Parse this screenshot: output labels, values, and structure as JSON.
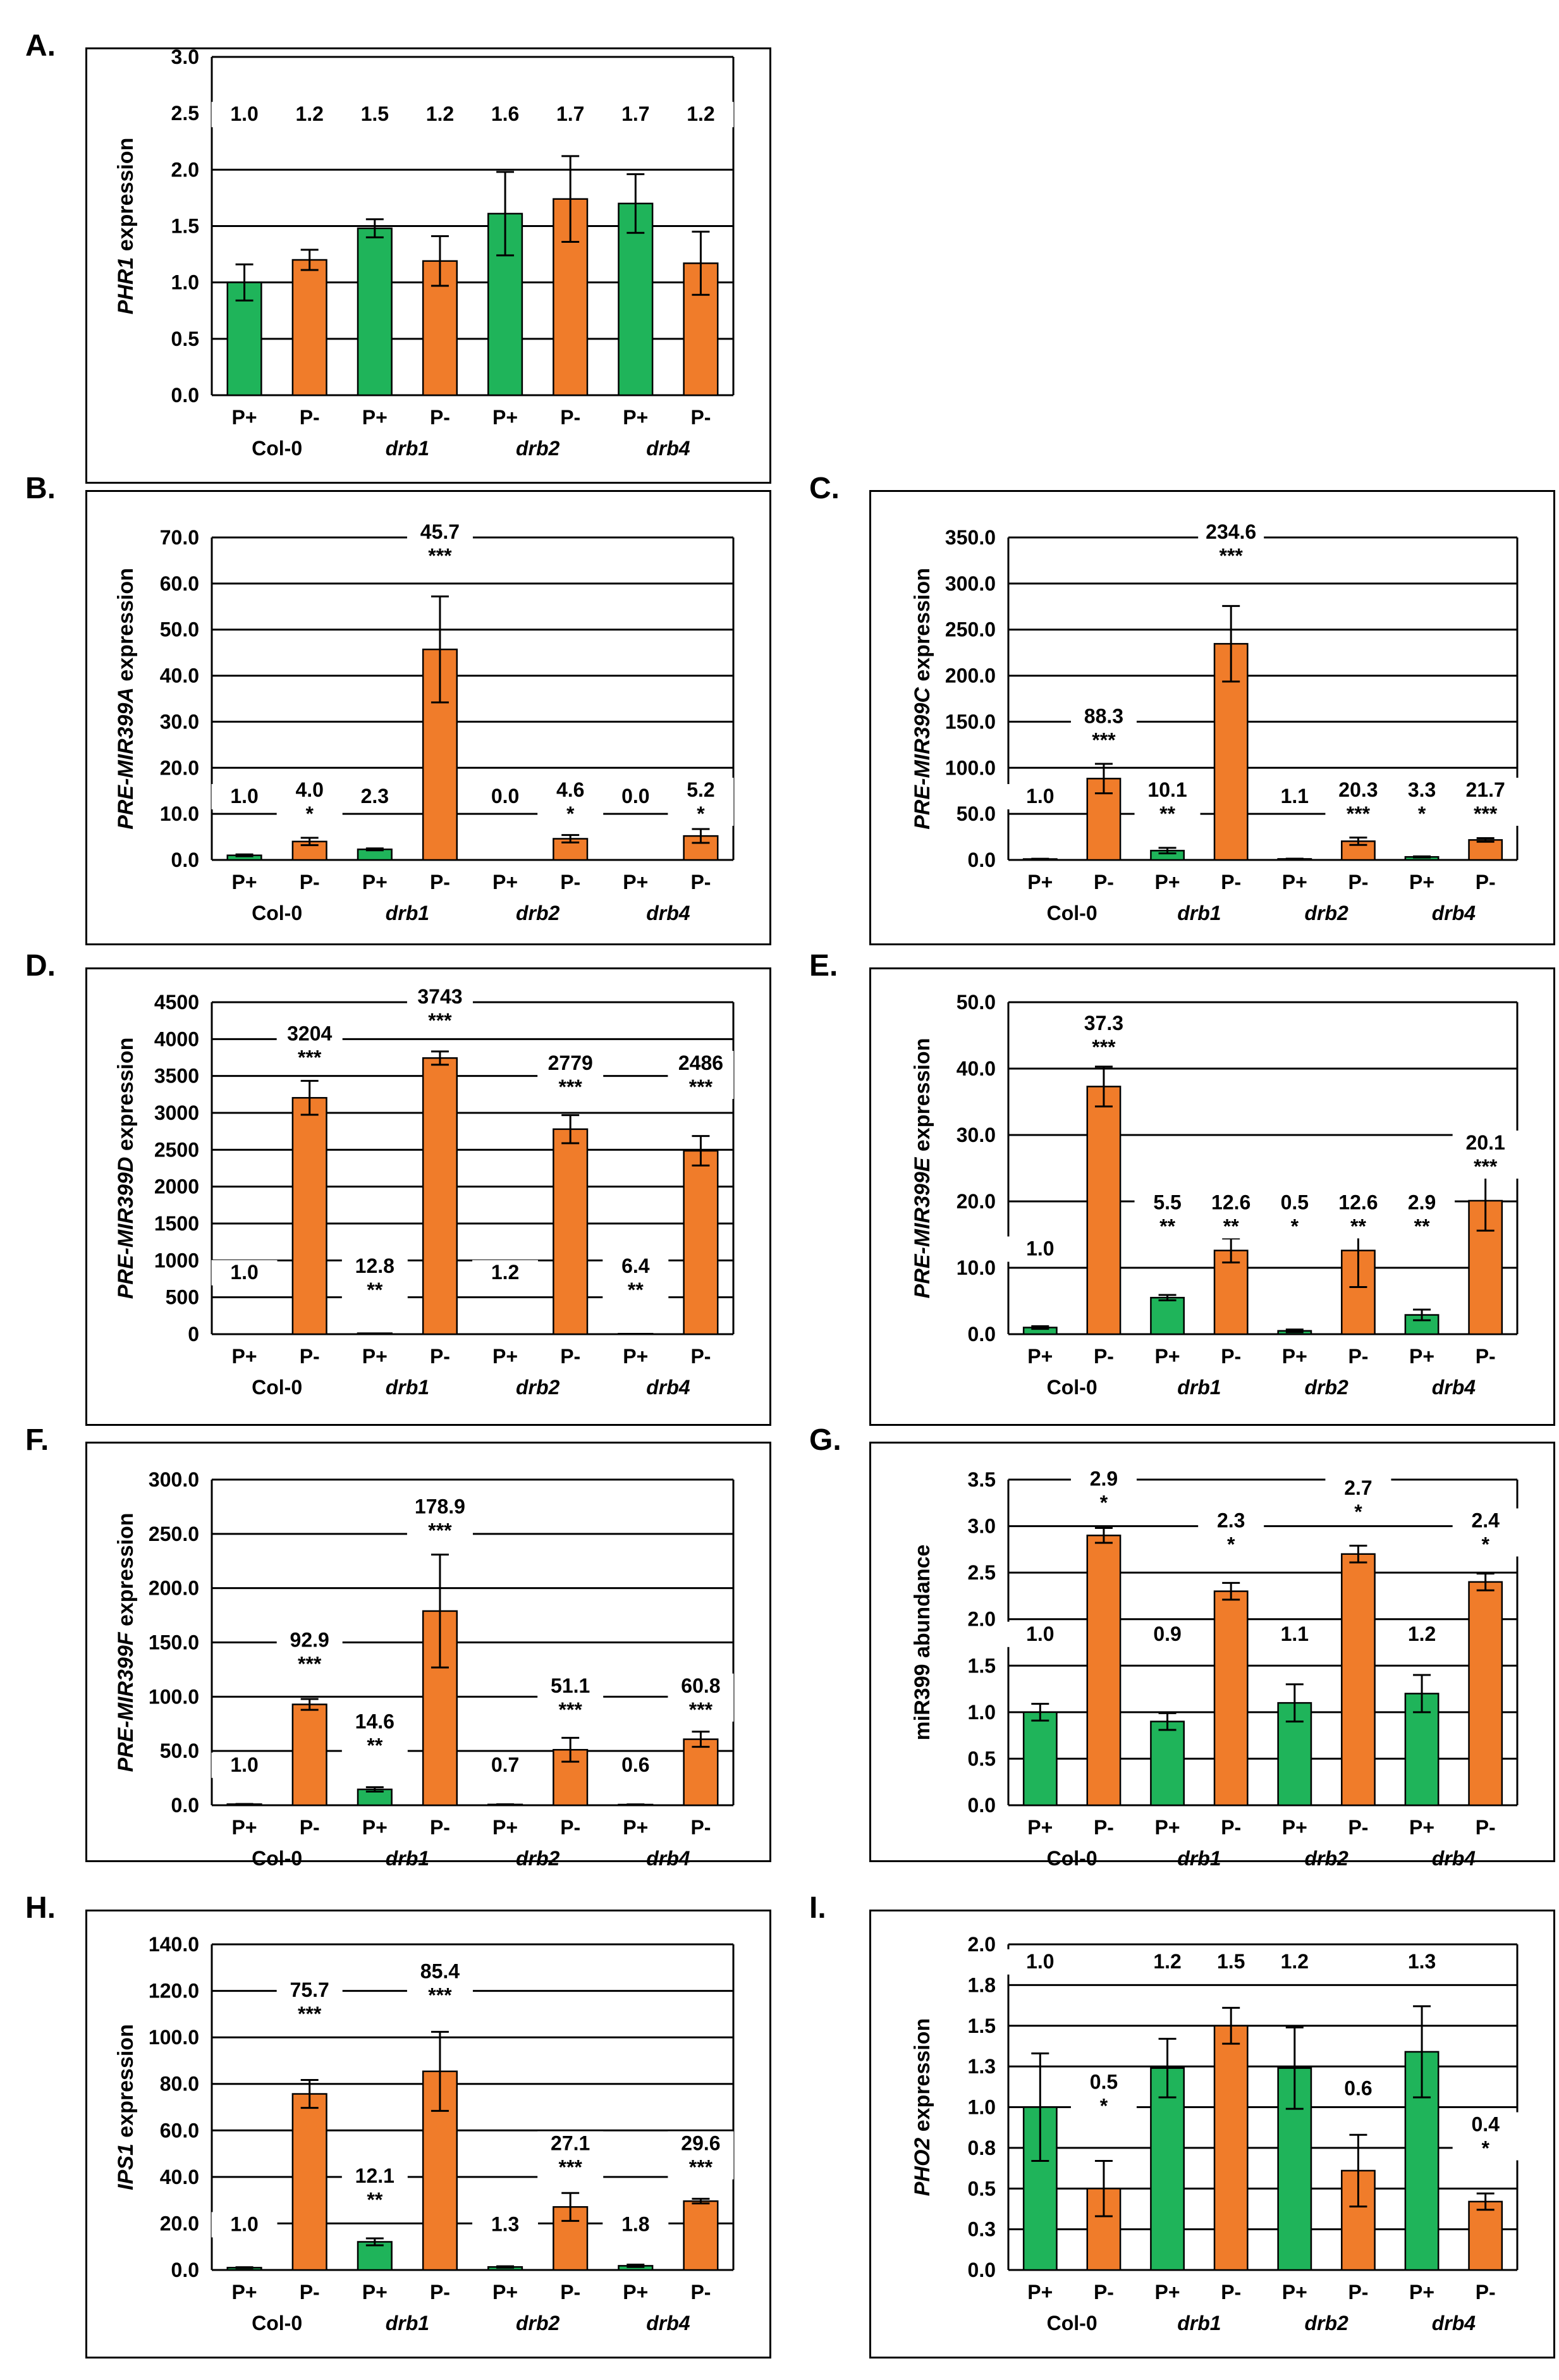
{
  "colors": {
    "p_plus": "#1fb45a",
    "p_minus": "#f07c2a",
    "grid": "#000000",
    "text": "#000000"
  },
  "chart_data": [
    {
      "id": "A",
      "letter": "A.",
      "type": "bar",
      "ylabel_pre": "",
      "ylabel_ital": "PHR1",
      "ylabel_post": " expression",
      "ylim": [
        0,
        3.0
      ],
      "yticks": [
        "0.0",
        "0.5",
        "1.0",
        "1.5",
        "2.0",
        "2.5",
        "3.0"
      ],
      "xcats": [
        "P+",
        "P-",
        "P+",
        "P-",
        "P+",
        "P-",
        "P+",
        "P-"
      ],
      "groups": [
        "Col-0",
        "drb1",
        "drb2",
        "drb4"
      ],
      "values": [
        1.0,
        1.2,
        1.48,
        1.19,
        1.61,
        1.74,
        1.7,
        1.17
      ],
      "errors": [
        0.16,
        0.09,
        0.08,
        0.22,
        0.37,
        0.38,
        0.26,
        0.28
      ],
      "labels": [
        "1.0",
        "1.2",
        "1.5",
        "1.2",
        "1.6",
        "1.7",
        "1.7",
        "1.2"
      ],
      "stars": [
        "",
        "",
        "",
        "",
        "",
        "",
        "",
        ""
      ],
      "label_values": [
        2.5,
        2.5,
        2.5,
        2.5,
        2.5,
        2.5,
        2.5,
        2.5
      ]
    },
    {
      "id": "B",
      "letter": "B.",
      "type": "bar",
      "ylabel_pre": "",
      "ylabel_ital": "PRE-MIR399A",
      "ylabel_post": " expression",
      "ylim": [
        0,
        70.0
      ],
      "yticks": [
        "0.0",
        "10.0",
        "20.0",
        "30.0",
        "40.0",
        "50.0",
        "60.0",
        "70.0"
      ],
      "xcats": [
        "P+",
        "P-",
        "P+",
        "P-",
        "P+",
        "P-",
        "P+",
        "P-"
      ],
      "groups": [
        "Col-0",
        "drb1",
        "drb2",
        "drb4"
      ],
      "values": [
        1.0,
        4.0,
        2.3,
        45.7,
        0.0,
        4.6,
        0.0,
        5.2
      ],
      "errors": [
        0.2,
        0.8,
        0.2,
        11.5,
        0,
        0.8,
        0,
        1.5
      ],
      "labels": [
        "1.0",
        "4.0",
        "2.3",
        "45.7",
        "0.0",
        "4.6",
        "0.0",
        "5.2"
      ],
      "stars": [
        "",
        "*",
        "",
        "***",
        "",
        "*",
        "",
        "*"
      ],
      "label_values": [
        14.0,
        14.0,
        14.0,
        70.0,
        14.0,
        14.0,
        14.0,
        14.0
      ]
    },
    {
      "id": "C",
      "letter": "C.",
      "type": "bar",
      "ylabel_pre": "",
      "ylabel_ital": "PRE-MIR399C",
      "ylabel_post": " expression",
      "ylim": [
        0,
        350.0
      ],
      "yticks": [
        "0.0",
        "50.0",
        "100.0",
        "150.0",
        "200.0",
        "250.0",
        "300.0",
        "350.0"
      ],
      "xcats": [
        "P+",
        "P-",
        "P+",
        "P-",
        "P+",
        "P-",
        "P+",
        "P-"
      ],
      "groups": [
        "Col-0",
        "drb1",
        "drb2",
        "drb4"
      ],
      "values": [
        1.0,
        88.3,
        10.1,
        234.6,
        1.1,
        20.3,
        3.3,
        21.7
      ],
      "errors": [
        0.3,
        16,
        3,
        41,
        0.3,
        4,
        0.6,
        2
      ],
      "labels": [
        "1.0",
        "88.3",
        "10.1",
        "234.6",
        "1.1",
        "20.3",
        "3.3",
        "21.7"
      ],
      "stars": [
        "",
        "***",
        "**",
        "***",
        "",
        "***",
        "*",
        "***"
      ],
      "label_values": [
        70,
        150,
        70,
        350,
        70,
        70,
        70,
        70
      ]
    },
    {
      "id": "D",
      "letter": "D.",
      "type": "bar",
      "ylabel_pre": "",
      "ylabel_ital": "PRE-MIR399D",
      "ylabel_post": " expression",
      "ylim": [
        0,
        4500
      ],
      "yticks": [
        "0",
        "500",
        "1000",
        "1500",
        "2000",
        "2500",
        "3000",
        "3500",
        "4000",
        "4500"
      ],
      "xcats": [
        "P+",
        "P-",
        "P+",
        "P-",
        "P+",
        "P-",
        "P+",
        "P-"
      ],
      "groups": [
        "Col-0",
        "drb1",
        "drb2",
        "drb4"
      ],
      "values": [
        1.0,
        3204,
        12.8,
        3743,
        1.2,
        2779,
        6.4,
        2486
      ],
      "errors": [
        0,
        230,
        0,
        90,
        0,
        190,
        0,
        200
      ],
      "labels": [
        "1.0",
        "3204",
        "12.8",
        "3743",
        "1.2",
        "2779",
        "6.4",
        "2486"
      ],
      "stars": [
        "",
        "***",
        "**",
        "***",
        "",
        "***",
        "**",
        "***"
      ],
      "label_values": [
        850,
        4000,
        850,
        4500,
        850,
        3600,
        850,
        3600
      ]
    },
    {
      "id": "E",
      "letter": "E.",
      "type": "bar",
      "ylabel_pre": "",
      "ylabel_ital": "PRE-MIR399E",
      "ylabel_post": " expression",
      "ylim": [
        0,
        50.0
      ],
      "yticks": [
        "0.0",
        "10.0",
        "20.0",
        "30.0",
        "40.0",
        "50.0"
      ],
      "xcats": [
        "P+",
        "P-",
        "P+",
        "P-",
        "P+",
        "P-",
        "P+",
        "P-"
      ],
      "groups": [
        "Col-0",
        "drb1",
        "drb2",
        "drb4"
      ],
      "values": [
        1.0,
        37.3,
        5.5,
        12.6,
        0.5,
        12.6,
        2.9,
        20.1
      ],
      "errors": [
        0.2,
        3,
        0.4,
        1.8,
        0.2,
        5.5,
        0.8,
        4.5
      ],
      "labels": [
        "1.0",
        "37.3",
        "5.5",
        "12.6",
        "0.5",
        "12.6",
        "2.9",
        "20.1"
      ],
      "stars": [
        "",
        "***",
        "**",
        "**",
        "*",
        "**",
        "**",
        "***"
      ],
      "label_values": [
        13,
        46,
        19,
        19,
        19,
        19,
        19,
        28
      ]
    },
    {
      "id": "F",
      "letter": "F.",
      "type": "bar",
      "ylabel_pre": "",
      "ylabel_ital": "PRE-MIR399F",
      "ylabel_post": " expression",
      "ylim": [
        0,
        300.0
      ],
      "yticks": [
        "0.0",
        "50.0",
        "100.0",
        "150.0",
        "200.0",
        "250.0",
        "300.0"
      ],
      "xcats": [
        "P+",
        "P-",
        "P+",
        "P-",
        "P+",
        "P-",
        "P+",
        "P-"
      ],
      "groups": [
        "Col-0",
        "drb1",
        "drb2",
        "drb4"
      ],
      "values": [
        1.0,
        92.9,
        14.6,
        178.9,
        0.7,
        51.1,
        0.6,
        60.8
      ],
      "errors": [
        0.2,
        5,
        2,
        52,
        0.2,
        11,
        0.2,
        7
      ],
      "labels": [
        "1.0",
        "92.9",
        "14.6",
        "178.9",
        "0.7",
        "51.1",
        "0.6",
        "60.8"
      ],
      "stars": [
        "",
        "***",
        "**",
        "***",
        "",
        "***",
        "",
        "***"
      ],
      "label_values": [
        38,
        147,
        72,
        270,
        38,
        105,
        38,
        105
      ]
    },
    {
      "id": "G",
      "letter": "G.",
      "type": "bar",
      "ylabel_pre": "miR399 abundance",
      "ylabel_ital": "",
      "ylabel_post": "",
      "ylim": [
        0,
        3.5
      ],
      "yticks": [
        "0.0",
        "0.5",
        "1.0",
        "1.5",
        "2.0",
        "2.5",
        "3.0",
        "3.5"
      ],
      "xcats": [
        "P+",
        "P-",
        "P+",
        "P-",
        "P+",
        "P-",
        "P+",
        "P-"
      ],
      "groups": [
        "Col-0",
        "drb1",
        "drb2",
        "drb4"
      ],
      "values": [
        1.0,
        2.9,
        0.9,
        2.3,
        1.1,
        2.7,
        1.2,
        2.4
      ],
      "errors": [
        0.09,
        0.08,
        0.09,
        0.09,
        0.2,
        0.09,
        0.2,
        0.09
      ],
      "labels": [
        "1.0",
        "2.9",
        "0.9",
        "2.3",
        "1.1",
        "2.7",
        "1.2",
        "2.4"
      ],
      "stars": [
        "",
        "*",
        "",
        "*",
        "",
        "*",
        "",
        "*"
      ],
      "label_values": [
        1.85,
        3.45,
        1.85,
        3.0,
        1.85,
        3.35,
        1.85,
        3.0
      ]
    },
    {
      "id": "H",
      "letter": "H.",
      "type": "bar",
      "ylabel_pre": "",
      "ylabel_ital": "IPS1",
      "ylabel_post": " expression",
      "ylim": [
        0,
        140.0
      ],
      "yticks": [
        "0.0",
        "20.0",
        "40.0",
        "60.0",
        "80.0",
        "100.0",
        "120.0",
        "140.0"
      ],
      "xcats": [
        "P+",
        "P-",
        "P+",
        "P-",
        "P+",
        "P-",
        "P+",
        "P-"
      ],
      "groups": [
        "Col-0",
        "drb1",
        "drb2",
        "drb4"
      ],
      "values": [
        1.0,
        75.7,
        12.1,
        85.4,
        1.3,
        27.1,
        1.8,
        29.6
      ],
      "errors": [
        0.2,
        6,
        1.5,
        17,
        0.3,
        6,
        0.5,
        1
      ],
      "labels": [
        "1.0",
        "75.7",
        "12.1",
        "85.4",
        "1.3",
        "27.1",
        "1.8",
        "29.6"
      ],
      "stars": [
        "",
        "***",
        "**",
        "***",
        "",
        "***",
        "",
        "***"
      ],
      "label_values": [
        20,
        118,
        38,
        126,
        20,
        52,
        20,
        52
      ]
    },
    {
      "id": "I",
      "letter": "I.",
      "type": "bar",
      "ylabel_pre": "",
      "ylabel_ital": "PHO2",
      "ylabel_post": " expression",
      "ylim": [
        0,
        2.0
      ],
      "yticks": [
        "0.0",
        "0.3",
        "0.5",
        "0.8",
        "1.0",
        "1.3",
        "1.5",
        "1.8",
        "2.0"
      ],
      "xcats": [
        "P+",
        "P-",
        "P+",
        "P-",
        "P+",
        "P-",
        "P+",
        "P-"
      ],
      "groups": [
        "Col-0",
        "drb1",
        "drb2",
        "drb4"
      ],
      "values": [
        1.0,
        0.5,
        1.24,
        1.5,
        1.24,
        0.61,
        1.34,
        0.42
      ],
      "errors": [
        0.33,
        0.17,
        0.18,
        0.11,
        0.25,
        0.22,
        0.28,
        0.05
      ],
      "labels": [
        "1.0",
        "0.5",
        "1.2",
        "1.5",
        "1.2",
        "0.6",
        "1.3",
        "0.4"
      ],
      "stars": [
        "",
        "*",
        "",
        "",
        "",
        "",
        "",
        "*"
      ],
      "label_values": [
        1.9,
        1.12,
        1.9,
        1.9,
        1.9,
        1.12,
        1.9,
        0.86
      ]
    }
  ]
}
